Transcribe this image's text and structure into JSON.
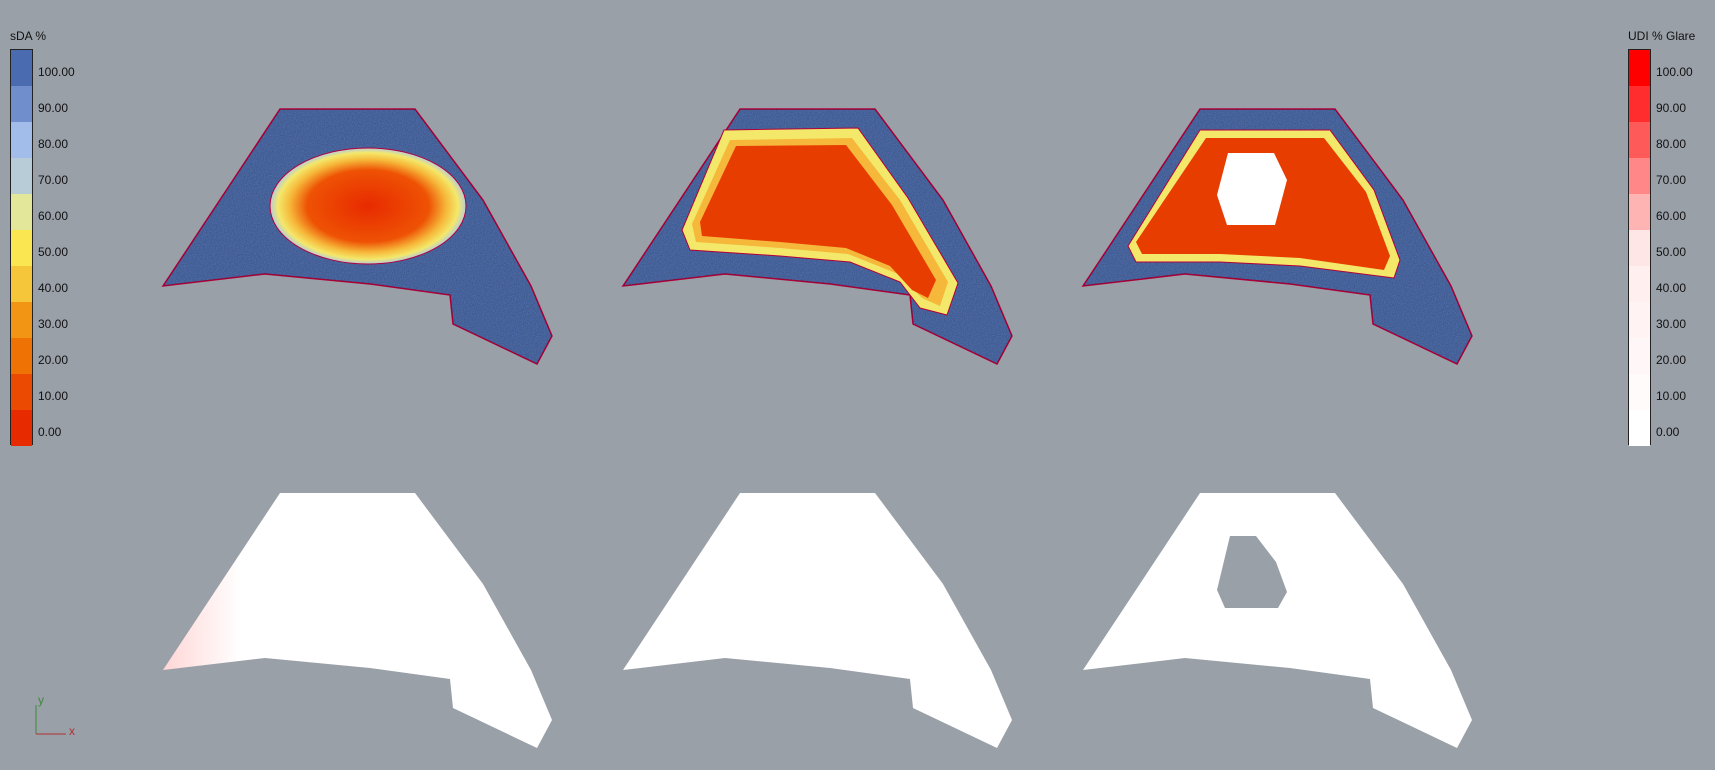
{
  "legend_left": {
    "title": "sDA %",
    "labels": [
      "100.00",
      "90.00",
      "80.00",
      "70.00",
      "60.00",
      "50.00",
      "40.00",
      "30.00",
      "20.00",
      "10.00",
      "0.00"
    ],
    "colors": [
      "#4a6bb0",
      "#6f8ecb",
      "#a3bdeb",
      "#b8ccd8",
      "#e2e79a",
      "#f9e651",
      "#f6c63a",
      "#f29414",
      "#ee7204",
      "#eb4a03",
      "#e82a00"
    ]
  },
  "legend_right": {
    "title": "UDI % Glare",
    "labels": [
      "100.00",
      "90.00",
      "80.00",
      "70.00",
      "60.00",
      "50.00",
      "40.00",
      "30.00",
      "20.00",
      "10.00",
      "0.00"
    ],
    "colors": [
      "#ff0000",
      "#ff2d2d",
      "#ff5a5a",
      "#ff8787",
      "#ffb4b4",
      "#ffe6e6",
      "#ffefef",
      "#fff3f3",
      "#fff7f7",
      "#fffbfb",
      "#ffffff"
    ]
  },
  "axes": {
    "x": "x",
    "y": "y"
  }
}
